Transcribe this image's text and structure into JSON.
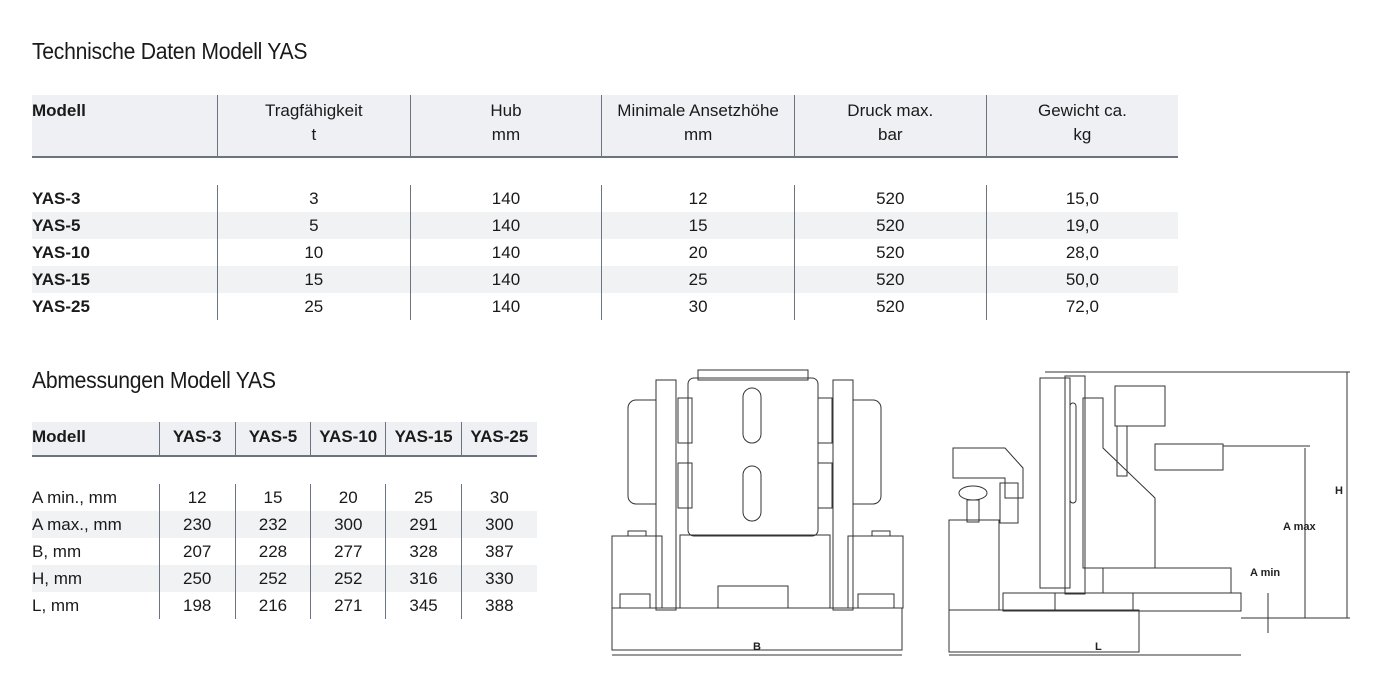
{
  "tech": {
    "title": "Technische Daten Modell YAS",
    "headers": [
      [
        "Modell",
        ""
      ],
      [
        "Tragfähigkeit",
        "t"
      ],
      [
        "Hub",
        "mm"
      ],
      [
        "Minimale Ansetzhöhe",
        "mm"
      ],
      [
        "Druck max.",
        "bar"
      ],
      [
        "Gewicht ca.",
        "kg"
      ]
    ],
    "rows": [
      [
        "YAS-3",
        "3",
        "140",
        "12",
        "520",
        "15,0"
      ],
      [
        "YAS-5",
        "5",
        "140",
        "15",
        "520",
        "19,0"
      ],
      [
        "YAS-10",
        "10",
        "140",
        "20",
        "520",
        "28,0"
      ],
      [
        "YAS-15",
        "15",
        "140",
        "25",
        "520",
        "50,0"
      ],
      [
        "YAS-25",
        "25",
        "140",
        "30",
        "520",
        "72,0"
      ]
    ]
  },
  "dims": {
    "title": "Abmessungen Modell YAS",
    "headers": [
      "Modell",
      "YAS-3",
      "YAS-5",
      "YAS-10",
      "YAS-15",
      "YAS-25"
    ],
    "rows": [
      [
        "A min., mm",
        "12",
        "15",
        "20",
        "25",
        "30"
      ],
      [
        "A max., mm",
        "230",
        "232",
        "300",
        "291",
        "300"
      ],
      [
        "B, mm",
        "207",
        "228",
        "277",
        "328",
        "387"
      ],
      [
        "H, mm",
        "250",
        "252",
        "252",
        "316",
        "330"
      ],
      [
        "L, mm",
        "198",
        "216",
        "271",
        "345",
        "388"
      ]
    ]
  },
  "drawing": {
    "front_label": "B",
    "side_labels": {
      "L": "L",
      "H": "H",
      "amax": "A max",
      "amin": "A min"
    }
  }
}
